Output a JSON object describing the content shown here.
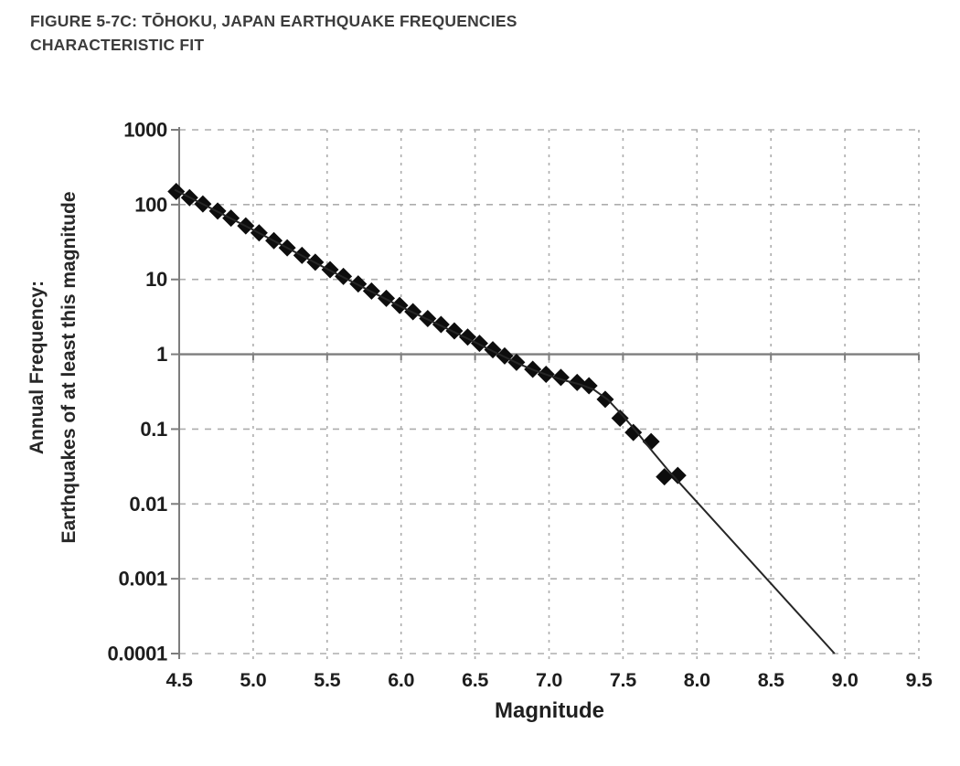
{
  "figure": {
    "title_line1": "FIGURE 5-7C: TŌHOKU, JAPAN EARTHQUAKE FREQUENCIES",
    "title_line2": "CHARACTERISTIC FIT"
  },
  "chart_data": {
    "type": "scatter",
    "title": "FIGURE 5-7C: TŌHOKU, JAPAN EARTHQUAKE FREQUENCIES",
    "subtitle": "CHARACTERISTIC FIT",
    "xlabel": "Magnitude",
    "ylabel_line1": "Annual Frequency:",
    "ylabel_line2": "Earthquakes of at least this magnitude",
    "x_scale": "linear",
    "y_scale": "log",
    "xlim": [
      4.5,
      9.5
    ],
    "ylim": [
      0.0001,
      1000
    ],
    "x_tick_labels": [
      "4.5",
      "5.0",
      "5.5",
      "6.0",
      "6.5",
      "7.0",
      "7.5",
      "8.0",
      "8.5",
      "9.0",
      "9.5"
    ],
    "y_tick_labels": [
      "1000",
      "100",
      "10",
      "1",
      "0.1",
      "0.01",
      "0.001",
      "0.0001"
    ],
    "grid": true,
    "x_axis_crosses_at_y": 1,
    "legend": "none",
    "series": [
      {
        "name": "observed-annual-frequencies",
        "type": "scatter",
        "marker": "diamond",
        "color": "#0d0d0d",
        "points": [
          [
            4.48,
            150
          ],
          [
            4.57,
            124
          ],
          [
            4.66,
            102
          ],
          [
            4.76,
            82
          ],
          [
            4.85,
            66
          ],
          [
            4.95,
            52
          ],
          [
            5.04,
            42
          ],
          [
            5.14,
            33
          ],
          [
            5.23,
            26.5
          ],
          [
            5.33,
            21
          ],
          [
            5.42,
            17
          ],
          [
            5.52,
            13.5
          ],
          [
            5.61,
            11
          ],
          [
            5.71,
            8.7
          ],
          [
            5.8,
            7.0
          ],
          [
            5.9,
            5.6
          ],
          [
            5.99,
            4.5
          ],
          [
            6.08,
            3.7
          ],
          [
            6.18,
            3.0
          ],
          [
            6.27,
            2.5
          ],
          [
            6.36,
            2.05
          ],
          [
            6.45,
            1.7
          ],
          [
            6.53,
            1.4
          ],
          [
            6.62,
            1.15
          ],
          [
            6.7,
            0.95
          ],
          [
            6.78,
            0.78
          ],
          [
            6.89,
            0.63
          ],
          [
            6.98,
            0.54
          ],
          [
            7.08,
            0.49
          ],
          [
            7.19,
            0.42
          ],
          [
            7.27,
            0.38
          ],
          [
            7.38,
            0.25
          ],
          [
            7.48,
            0.14
          ],
          [
            7.57,
            0.09
          ],
          [
            7.69,
            0.068
          ],
          [
            7.78,
            0.023
          ],
          [
            7.87,
            0.024
          ]
        ]
      },
      {
        "name": "characteristic-fit-line",
        "type": "line",
        "color": "#262626",
        "points": [
          [
            4.47,
            158
          ],
          [
            5.0,
            46
          ],
          [
            5.5,
            13.8
          ],
          [
            6.0,
            4.3
          ],
          [
            6.3,
            2.25
          ],
          [
            6.5,
            1.45
          ],
          [
            6.6,
            1.15
          ],
          [
            6.7,
            0.92
          ],
          [
            6.8,
            0.74
          ],
          [
            6.9,
            0.61
          ],
          [
            7.0,
            0.52
          ],
          [
            7.1,
            0.45
          ],
          [
            7.2,
            0.4
          ],
          [
            7.3,
            0.34
          ],
          [
            7.4,
            0.245
          ],
          [
            7.5,
            0.15
          ],
          [
            7.6,
            0.088
          ],
          [
            7.7,
            0.05
          ],
          [
            7.8,
            0.029
          ],
          [
            7.9,
            0.0175
          ],
          [
            8.93,
            0.0001
          ]
        ]
      }
    ]
  },
  "style_colors": {
    "gridline": "#adadad",
    "axis": "#7d7d7d",
    "tick_label": "#1d1d1d",
    "marker": "#0d0d0d",
    "fit_line": "#262626"
  }
}
